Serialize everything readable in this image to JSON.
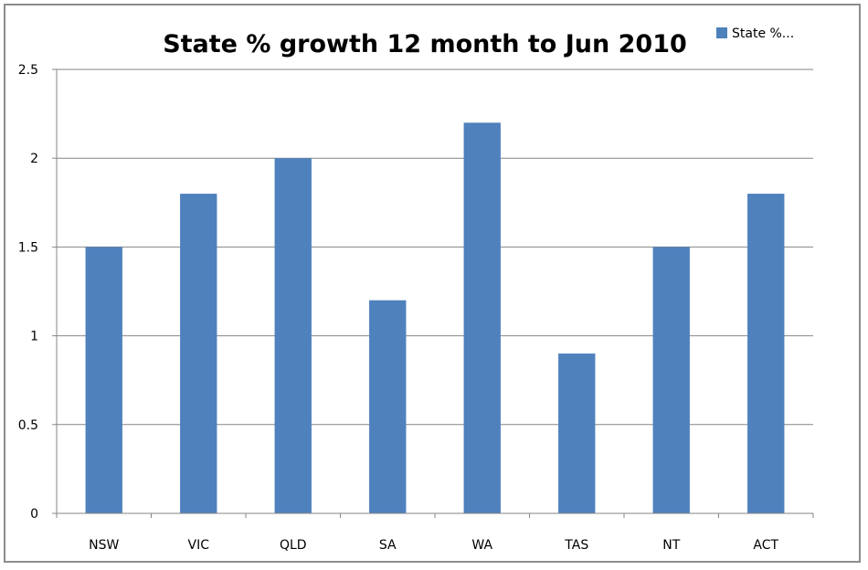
{
  "chart_data": {
    "type": "bar",
    "title": "State % growth 12 month to Jun 2010",
    "categories": [
      "NSW",
      "VIC",
      "QLD",
      "SA",
      "WA",
      "TAS",
      "NT",
      "ACT"
    ],
    "series": [
      {
        "name": "State %...",
        "values": [
          1.5,
          1.8,
          2.0,
          1.2,
          2.2,
          0.9,
          1.5,
          1.8
        ]
      }
    ],
    "ylim": [
      0,
      2.5
    ],
    "yticks": [
      "0",
      "0.5",
      "1",
      "1.5",
      "2",
      "2.5"
    ],
    "grid": true,
    "legend_position": "top-right",
    "bar_color": "#4f81bd"
  }
}
